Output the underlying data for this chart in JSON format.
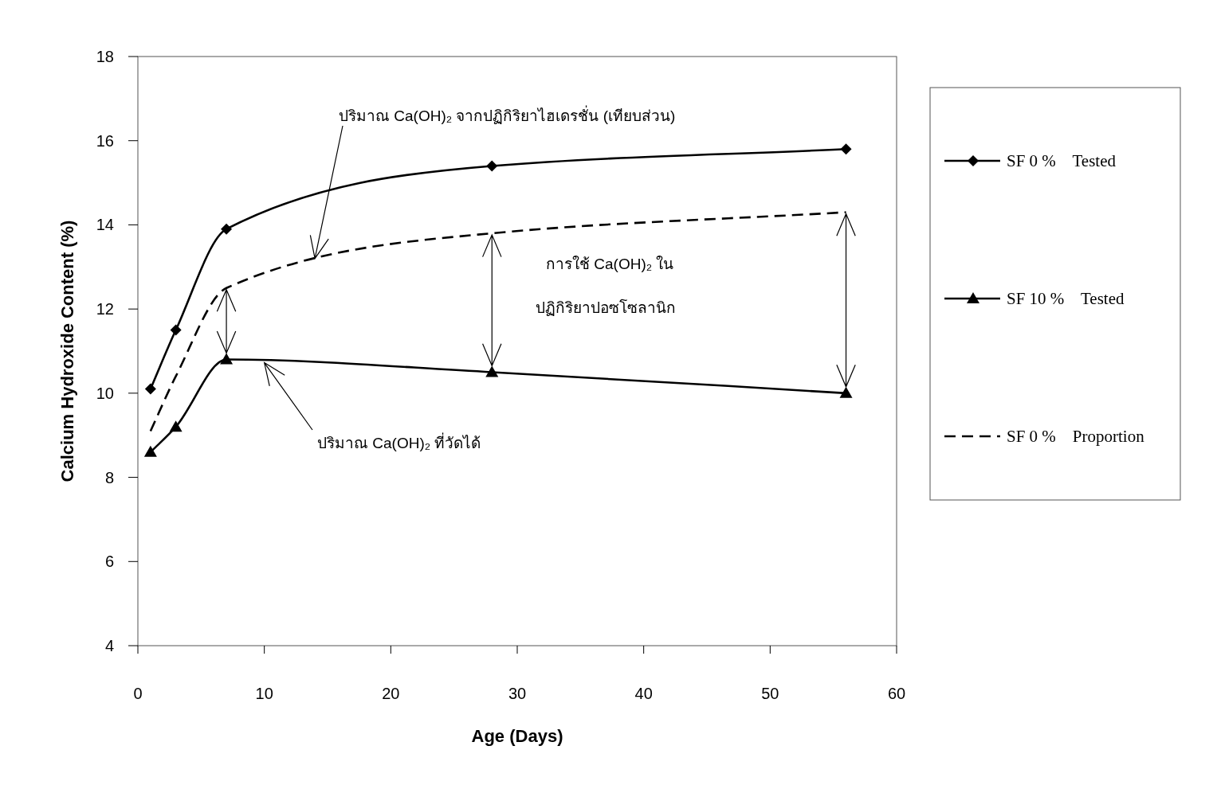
{
  "chart_data": {
    "type": "line",
    "xlabel": "Age (Days)",
    "ylabel": "Calcium Hydroxide Content (%)",
    "x": [
      1,
      3,
      7,
      28,
      56
    ],
    "series": [
      {
        "name": "SF 0 %    Tested",
        "color": "#000000",
        "values": [
          10.1,
          11.5,
          13.9,
          15.4,
          15.8
        ],
        "marker": "diamond",
        "line_style": "solid"
      },
      {
        "name": "SF 10 %    Tested",
        "color": "#000000",
        "values": [
          8.6,
          9.2,
          10.8,
          10.5,
          10.0
        ],
        "marker": "triangle",
        "line_style": "solid"
      },
      {
        "name": "SF 0 %    Proportion",
        "color": "#000000",
        "values": [
          9.1,
          10.4,
          12.5,
          13.8,
          14.3
        ],
        "marker": "none",
        "line_style": "dashed"
      }
    ],
    "xlim": [
      0,
      60
    ],
    "xticks": [
      0,
      10,
      20,
      30,
      40,
      50,
      60
    ],
    "ylim": [
      4,
      18
    ],
    "yticks": [
      4,
      6,
      8,
      10,
      12,
      14,
      16,
      18
    ],
    "legend": "right",
    "grid": false,
    "annotations": [
      {
        "text": "ปริมาณ Ca(OH)₂ จากปฏิกิริยาไฮเดรชั่น (เทียบส่วน)",
        "x": 14,
        "y": 13.2
      },
      "การใช้  Ca(OH)₂ ใน",
      "ปฏิกิริยาปอซโซลานิก",
      {
        "text": "ปริมาณ  Ca(OH)₂ ที่วัดได้",
        "x": 10,
        "y": 10.8
      }
    ]
  }
}
